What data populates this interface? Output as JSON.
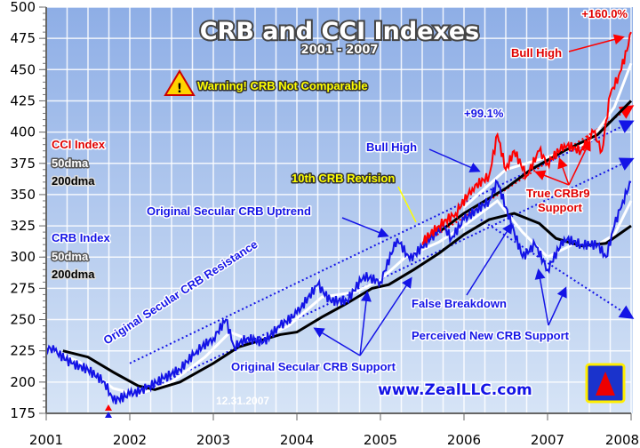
{
  "chart_data": {
    "type": "line",
    "title": "CRB and CCI Indexes",
    "subtitle": "2001 - 2007",
    "ylim": [
      175,
      500
    ],
    "yticks": [
      175,
      200,
      225,
      250,
      275,
      300,
      325,
      350,
      375,
      400,
      425,
      450,
      475,
      500
    ],
    "xlim": [
      2001,
      2008
    ],
    "xticks": [
      "2001",
      "2002",
      "2003",
      "2004",
      "2005",
      "2006",
      "2007",
      "2008"
    ],
    "grid": true,
    "date_stamp": "12.31.2007",
    "watermark": "www.ZealLLC.com",
    "legend": {
      "cci": [
        "CCI Index",
        "50dma",
        "200dma"
      ],
      "crb": [
        "CRB Index",
        "50dma",
        "200dma"
      ],
      "placement": "left"
    },
    "colors": {
      "crb": "#1414e6",
      "cci": "#ff0000",
      "dma50": "#ffffff",
      "dma200": "#000000"
    },
    "series": [
      {
        "name": "CRB Index",
        "color": "#1414e6",
        "x": [
          2001.0,
          2001.1,
          2001.3,
          2001.5,
          2001.7,
          2001.8,
          2002.0,
          2002.2,
          2002.4,
          2002.6,
          2002.8,
          2003.0,
          2003.15,
          2003.25,
          2003.4,
          2003.6,
          2003.8,
          2004.0,
          2004.25,
          2004.4,
          2004.6,
          2004.8,
          2005.0,
          2005.2,
          2005.35,
          2005.6,
          2005.75,
          2005.85,
          2006.0,
          2006.3,
          2006.4,
          2006.5,
          2006.7,
          2006.85,
          2007.0,
          2007.2,
          2007.4,
          2007.6,
          2007.7,
          2007.8,
          2007.9,
          2008.0
        ],
        "y": [
          228,
          225,
          215,
          210,
          200,
          185,
          190,
          195,
          203,
          210,
          225,
          235,
          250,
          228,
          235,
          232,
          245,
          255,
          278,
          265,
          265,
          285,
          280,
          315,
          298,
          315,
          325,
          315,
          330,
          345,
          360,
          340,
          300,
          310,
          290,
          315,
          310,
          310,
          300,
          325,
          345,
          360
        ]
      },
      {
        "name": "CRB 50dma",
        "color": "#ffffff",
        "x": [
          2001.0,
          2001.4,
          2001.8,
          2002.1,
          2002.5,
          2002.9,
          2003.2,
          2003.5,
          2003.9,
          2004.3,
          2004.7,
          2005.0,
          2005.3,
          2005.7,
          2006.0,
          2006.4,
          2006.7,
          2007.0,
          2007.3,
          2007.6,
          2007.8,
          2008.0
        ],
        "y": [
          228,
          216,
          195,
          190,
          200,
          220,
          240,
          232,
          245,
          268,
          272,
          282,
          300,
          312,
          325,
          345,
          320,
          300,
          310,
          310,
          318,
          345
        ]
      },
      {
        "name": "CRB 200dma",
        "color": "#000000",
        "x": [
          2001.2,
          2001.5,
          2001.8,
          2002.1,
          2002.3,
          2002.6,
          2003.0,
          2003.3,
          2003.6,
          2003.8,
          2004.0,
          2004.3,
          2004.6,
          2004.9,
          2005.1,
          2005.4,
          2005.7,
          2006.0,
          2006.3,
          2006.6,
          2006.9,
          2007.1,
          2007.4,
          2007.7,
          2008.0
        ],
        "y": [
          225,
          220,
          208,
          197,
          194,
          200,
          215,
          228,
          234,
          238,
          240,
          252,
          263,
          275,
          278,
          290,
          303,
          318,
          330,
          335,
          327,
          315,
          309,
          311,
          325
        ]
      },
      {
        "name": "CCI Index",
        "color": "#ff0000",
        "x": [
          2005.5,
          2005.7,
          2005.9,
          2006.1,
          2006.3,
          2006.4,
          2006.5,
          2006.6,
          2006.75,
          2006.9,
          2007.0,
          2007.2,
          2007.4,
          2007.55,
          2007.65,
          2007.75,
          2007.85,
          2007.95,
          2008.0
        ],
        "y": [
          312,
          325,
          335,
          355,
          365,
          398,
          370,
          385,
          365,
          385,
          375,
          390,
          385,
          400,
          385,
          430,
          445,
          465,
          480
        ]
      },
      {
        "name": "CCI 50dma",
        "color": "#ffffff",
        "x": [
          2006.0,
          2006.5,
          2007.0,
          2007.5,
          2007.8,
          2008.0
        ],
        "y": [
          340,
          370,
          380,
          392,
          420,
          455
        ]
      },
      {
        "name": "CCI 200dma",
        "color": "#000000",
        "x": [
          2005.7,
          2006.0,
          2006.5,
          2006.8,
          2007.2,
          2007.6,
          2008.0
        ],
        "y": [
          320,
          335,
          355,
          370,
          385,
          398,
          425
        ]
      }
    ],
    "trendlines": [
      {
        "name": "Original Secular CRB Resistance",
        "color": "#1414e6",
        "from": [
          2002.0,
          215
        ],
        "to": [
          2008.0,
          408
        ]
      },
      {
        "name": "Original Secular CRB Support",
        "color": "#1414e6",
        "from": [
          2002.1,
          190
        ],
        "to": [
          2008.0,
          378
        ]
      },
      {
        "name": "True CRBr9 Support",
        "color": "#ff0000",
        "from": [
          2005.5,
          310
        ],
        "to": [
          2008.0,
          420
        ]
      },
      {
        "name": "Perceived New CRB Support",
        "color": "#1414e6",
        "from": [
          2006.2,
          330
        ],
        "to": [
          2008.0,
          252
        ]
      }
    ],
    "annotations": {
      "warning": "Warning!  CRB Not Comparable",
      "cci_high_pct": "+160.0%",
      "cci_bull_high": "Bull High",
      "crb_high_pct": "+99.1%",
      "crb_bull_high": "Bull High",
      "revision": "10th CRB Revision",
      "uptrend": "Original Secular CRB Uptrend",
      "resistance": "Original Secular CRB Resistance",
      "support": "Original Secular CRB Support",
      "true_support_1": "True CRBr9",
      "true_support_2": "Support",
      "false_breakdown": "False Breakdown",
      "perceived": "Perceived New CRB Support"
    }
  }
}
